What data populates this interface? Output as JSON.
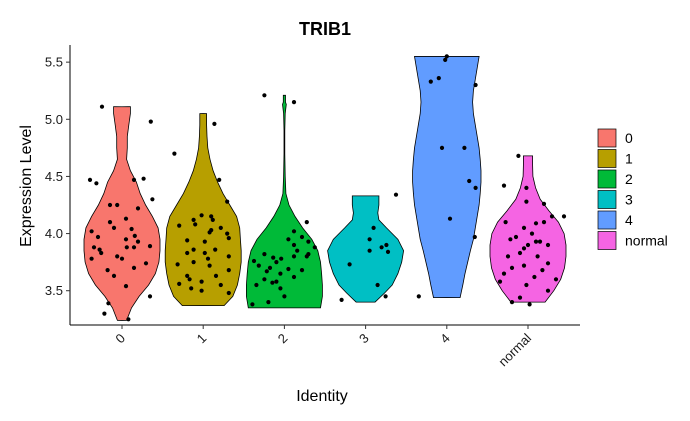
{
  "chart_data": {
    "type": "violin",
    "title": "TRIB1",
    "xlabel": "Identity",
    "ylabel": "Expression Level",
    "ylim": [
      3.2,
      5.65
    ],
    "yticks": [
      3.5,
      4.0,
      4.5,
      5.0,
      5.5
    ],
    "ytick_labels": [
      "3.5",
      "4.0",
      "4.5",
      "5.0",
      "5.5"
    ],
    "categories": [
      "0",
      "1",
      "2",
      "3",
      "4",
      "normal"
    ],
    "legend": {
      "position": "right",
      "entries": [
        "0",
        "1",
        "2",
        "3",
        "4",
        "normal"
      ]
    },
    "grid": false,
    "series": [
      {
        "name": "0",
        "color": "#F8766D",
        "min": 3.24,
        "max": 5.11,
        "density": [
          [
            3.24,
            0.12
          ],
          [
            3.35,
            0.25
          ],
          [
            3.45,
            0.45
          ],
          [
            3.55,
            0.7
          ],
          [
            3.65,
            0.88
          ],
          [
            3.75,
            0.97
          ],
          [
            3.85,
            1.0
          ],
          [
            3.95,
            1.0
          ],
          [
            4.05,
            0.95
          ],
          [
            4.15,
            0.8
          ],
          [
            4.25,
            0.62
          ],
          [
            4.35,
            0.48
          ],
          [
            4.45,
            0.38
          ],
          [
            4.55,
            0.22
          ],
          [
            4.65,
            0.12
          ],
          [
            4.75,
            0.14
          ],
          [
            4.85,
            0.14
          ],
          [
            4.95,
            0.18
          ],
          [
            5.05,
            0.22
          ],
          [
            5.11,
            0.22
          ]
        ],
        "points": [
          [
            0.35,
            4.25
          ],
          [
            0.1,
            4.47
          ],
          [
            0.18,
            4.44
          ],
          [
            0.65,
            4.47
          ],
          [
            0.77,
            4.48
          ],
          [
            0.88,
            4.3
          ],
          [
            0.44,
            4.25
          ],
          [
            0.7,
            4.22
          ],
          [
            0.55,
            4.13
          ],
          [
            0.35,
            4.1
          ],
          [
            0.62,
            4.04
          ],
          [
            0.4,
            4.05
          ],
          [
            0.12,
            4.02
          ],
          [
            0.66,
            3.98
          ],
          [
            0.2,
            3.97
          ],
          [
            0.55,
            3.95
          ],
          [
            0.7,
            3.93
          ],
          [
            0.15,
            3.88
          ],
          [
            0.56,
            3.88
          ],
          [
            0.85,
            3.89
          ],
          [
            0.22,
            3.86
          ],
          [
            0.65,
            3.88
          ],
          [
            0.24,
            3.83
          ],
          [
            0.44,
            3.8
          ],
          [
            0.12,
            3.78
          ],
          [
            0.5,
            3.78
          ],
          [
            0.8,
            3.74
          ],
          [
            0.65,
            3.7
          ],
          [
            0.32,
            3.68
          ],
          [
            0.4,
            3.63
          ],
          [
            0.55,
            3.54
          ],
          [
            0.85,
            3.45
          ],
          [
            0.28,
            3.3
          ],
          [
            0.33,
            3.39
          ],
          [
            0.58,
            3.25
          ],
          [
            0.25,
            5.11
          ],
          [
            0.86,
            4.98
          ]
        ]
      },
      {
        "name": "1",
        "color": "#B79F00",
        "min": 3.37,
        "max": 5.05,
        "density": [
          [
            3.37,
            0.55
          ],
          [
            3.45,
            0.78
          ],
          [
            3.55,
            0.9
          ],
          [
            3.65,
            0.96
          ],
          [
            3.75,
            1.0
          ],
          [
            3.85,
            1.0
          ],
          [
            3.95,
            0.98
          ],
          [
            4.05,
            0.96
          ],
          [
            4.15,
            0.88
          ],
          [
            4.25,
            0.7
          ],
          [
            4.35,
            0.52
          ],
          [
            4.45,
            0.38
          ],
          [
            4.55,
            0.26
          ],
          [
            4.65,
            0.18
          ],
          [
            4.75,
            0.12
          ],
          [
            4.85,
            0.1
          ],
          [
            4.95,
            0.09
          ],
          [
            5.05,
            0.09
          ]
        ],
        "points": [
          [
            0.14,
            4.7
          ],
          [
            0.7,
            4.47
          ],
          [
            0.8,
            4.28
          ],
          [
            0.48,
            4.16
          ],
          [
            0.6,
            4.15
          ],
          [
            0.38,
            4.12
          ],
          [
            0.62,
            4.12
          ],
          [
            0.4,
            4.08
          ],
          [
            0.2,
            4.07
          ],
          [
            0.72,
            4.05
          ],
          [
            0.6,
            4.03
          ],
          [
            0.58,
            4.01
          ],
          [
            0.8,
            4.0
          ],
          [
            0.82,
            3.96
          ],
          [
            0.3,
            3.94
          ],
          [
            0.52,
            3.93
          ],
          [
            0.38,
            3.86
          ],
          [
            0.65,
            3.86
          ],
          [
            0.3,
            3.83
          ],
          [
            0.52,
            3.83
          ],
          [
            0.82,
            3.8
          ],
          [
            0.56,
            3.78
          ],
          [
            0.38,
            3.75
          ],
          [
            0.18,
            3.73
          ],
          [
            0.58,
            3.72
          ],
          [
            0.82,
            3.68
          ],
          [
            0.3,
            3.63
          ],
          [
            0.66,
            3.63
          ],
          [
            0.48,
            3.58
          ],
          [
            0.2,
            3.56
          ],
          [
            0.35,
            3.52
          ],
          [
            0.48,
            3.5
          ],
          [
            0.82,
            3.48
          ],
          [
            0.64,
            4.96
          ],
          [
            0.33,
            3.6
          ],
          [
            0.72,
            3.55
          ]
        ]
      },
      {
        "name": "2",
        "color": "#00BA38",
        "min": 3.35,
        "max": 5.21,
        "density": [
          [
            3.35,
            0.95
          ],
          [
            3.45,
            1.0
          ],
          [
            3.55,
            1.0
          ],
          [
            3.65,
            0.98
          ],
          [
            3.75,
            0.95
          ],
          [
            3.85,
            0.88
          ],
          [
            3.95,
            0.72
          ],
          [
            4.05,
            0.48
          ],
          [
            4.15,
            0.28
          ],
          [
            4.25,
            0.12
          ],
          [
            4.35,
            0.04
          ],
          [
            4.5,
            0.02
          ],
          [
            4.7,
            0.01
          ],
          [
            4.9,
            0.01
          ],
          [
            5.05,
            0.02
          ],
          [
            5.13,
            0.05
          ],
          [
            5.15,
            0.03
          ],
          [
            5.21,
            0.03
          ]
        ],
        "points": [
          [
            0.25,
            5.21
          ],
          [
            0.62,
            5.15
          ],
          [
            0.78,
            4.1
          ],
          [
            0.62,
            4.02
          ],
          [
            0.72,
            3.97
          ],
          [
            0.55,
            3.95
          ],
          [
            0.62,
            3.9
          ],
          [
            0.8,
            3.93
          ],
          [
            0.88,
            3.88
          ],
          [
            0.66,
            3.85
          ],
          [
            0.8,
            3.82
          ],
          [
            0.25,
            3.82
          ],
          [
            0.62,
            3.8
          ],
          [
            0.36,
            3.79
          ],
          [
            0.46,
            3.78
          ],
          [
            0.12,
            3.76
          ],
          [
            0.4,
            3.75
          ],
          [
            0.18,
            3.72
          ],
          [
            0.32,
            3.7
          ],
          [
            0.55,
            3.69
          ],
          [
            0.72,
            3.68
          ],
          [
            0.28,
            3.67
          ],
          [
            0.45,
            3.65
          ],
          [
            0.62,
            3.62
          ],
          [
            0.25,
            3.6
          ],
          [
            0.4,
            3.58
          ],
          [
            0.15,
            3.55
          ],
          [
            0.45,
            3.52
          ],
          [
            0.5,
            3.45
          ],
          [
            0.3,
            3.4
          ],
          [
            0.1,
            3.38
          ],
          [
            0.78,
            3.8
          ],
          [
            0.35,
            3.57
          ]
        ]
      },
      {
        "name": "3",
        "color": "#00BFC4",
        "min": 3.4,
        "max": 4.33,
        "density": [
          [
            3.4,
            0.25
          ],
          [
            3.48,
            0.5
          ],
          [
            3.55,
            0.7
          ],
          [
            3.65,
            0.85
          ],
          [
            3.75,
            0.95
          ],
          [
            3.85,
            1.0
          ],
          [
            3.95,
            0.85
          ],
          [
            4.05,
            0.55
          ],
          [
            4.12,
            0.35
          ],
          [
            4.18,
            0.32
          ],
          [
            4.25,
            0.35
          ],
          [
            4.33,
            0.35
          ]
        ],
        "points": [
          [
            0.6,
            4.05
          ],
          [
            0.55,
            3.95
          ],
          [
            0.7,
            3.88
          ],
          [
            0.55,
            3.85
          ],
          [
            0.78,
            3.84
          ],
          [
            0.3,
            3.73
          ],
          [
            0.65,
            3.55
          ],
          [
            0.2,
            3.42
          ],
          [
            0.75,
            3.45
          ],
          [
            0.88,
            4.34
          ],
          [
            0.76,
            3.9
          ]
        ]
      },
      {
        "name": "4",
        "color": "#619CFF",
        "min": 3.44,
        "max": 5.55,
        "density": [
          [
            3.44,
            0.35
          ],
          [
            3.55,
            0.42
          ],
          [
            3.65,
            0.48
          ],
          [
            3.75,
            0.55
          ],
          [
            3.85,
            0.62
          ],
          [
            3.95,
            0.7
          ],
          [
            4.05,
            0.75
          ],
          [
            4.15,
            0.8
          ],
          [
            4.25,
            0.85
          ],
          [
            4.35,
            0.88
          ],
          [
            4.45,
            0.9
          ],
          [
            4.55,
            0.9
          ],
          [
            4.65,
            0.88
          ],
          [
            4.75,
            0.85
          ],
          [
            4.85,
            0.8
          ],
          [
            4.95,
            0.75
          ],
          [
            5.05,
            0.7
          ],
          [
            5.15,
            0.68
          ],
          [
            5.25,
            0.7
          ],
          [
            5.35,
            0.75
          ],
          [
            5.45,
            0.8
          ],
          [
            5.55,
            0.85
          ]
        ],
        "points": [
          [
            0.5,
            5.55
          ],
          [
            0.48,
            5.52
          ],
          [
            0.3,
            5.33
          ],
          [
            0.4,
            5.36
          ],
          [
            0.86,
            5.3
          ],
          [
            0.44,
            4.75
          ],
          [
            0.72,
            4.75
          ],
          [
            0.78,
            4.46
          ],
          [
            0.86,
            4.4
          ],
          [
            0.54,
            4.13
          ],
          [
            0.85,
            3.97
          ],
          [
            0.15,
            3.45
          ]
        ]
      },
      {
        "name": "normal",
        "color": "#F564E3",
        "min": 3.4,
        "max": 4.68,
        "density": [
          [
            3.4,
            0.45
          ],
          [
            3.5,
            0.68
          ],
          [
            3.6,
            0.86
          ],
          [
            3.7,
            0.96
          ],
          [
            3.8,
            1.0
          ],
          [
            3.9,
            1.0
          ],
          [
            4.0,
            0.95
          ],
          [
            4.1,
            0.8
          ],
          [
            4.2,
            0.55
          ],
          [
            4.3,
            0.32
          ],
          [
            4.4,
            0.2
          ],
          [
            4.5,
            0.13
          ],
          [
            4.6,
            0.12
          ],
          [
            4.68,
            0.12
          ]
        ],
        "points": [
          [
            0.38,
            4.68
          ],
          [
            0.2,
            4.42
          ],
          [
            0.48,
            4.4
          ],
          [
            0.48,
            4.28
          ],
          [
            0.7,
            4.26
          ],
          [
            0.8,
            4.15
          ],
          [
            0.22,
            4.1
          ],
          [
            0.7,
            4.1
          ],
          [
            0.6,
            4.09
          ],
          [
            0.45,
            4.05
          ],
          [
            0.55,
            4.0
          ],
          [
            0.35,
            3.97
          ],
          [
            0.65,
            3.93
          ],
          [
            0.28,
            3.95
          ],
          [
            0.6,
            3.93
          ],
          [
            0.5,
            3.9
          ],
          [
            0.75,
            3.9
          ],
          [
            0.45,
            3.87
          ],
          [
            0.4,
            3.83
          ],
          [
            0.25,
            3.8
          ],
          [
            0.62,
            3.8
          ],
          [
            0.75,
            3.74
          ],
          [
            0.45,
            3.72
          ],
          [
            0.3,
            3.7
          ],
          [
            0.68,
            3.68
          ],
          [
            0.2,
            3.65
          ],
          [
            0.58,
            3.62
          ],
          [
            0.15,
            3.58
          ],
          [
            0.48,
            3.55
          ],
          [
            0.75,
            3.5
          ],
          [
            0.3,
            3.4
          ],
          [
            0.4,
            3.44
          ],
          [
            0.52,
            3.38
          ],
          [
            0.85,
            3.6
          ],
          [
            0.95,
            4.15
          ]
        ]
      }
    ]
  }
}
